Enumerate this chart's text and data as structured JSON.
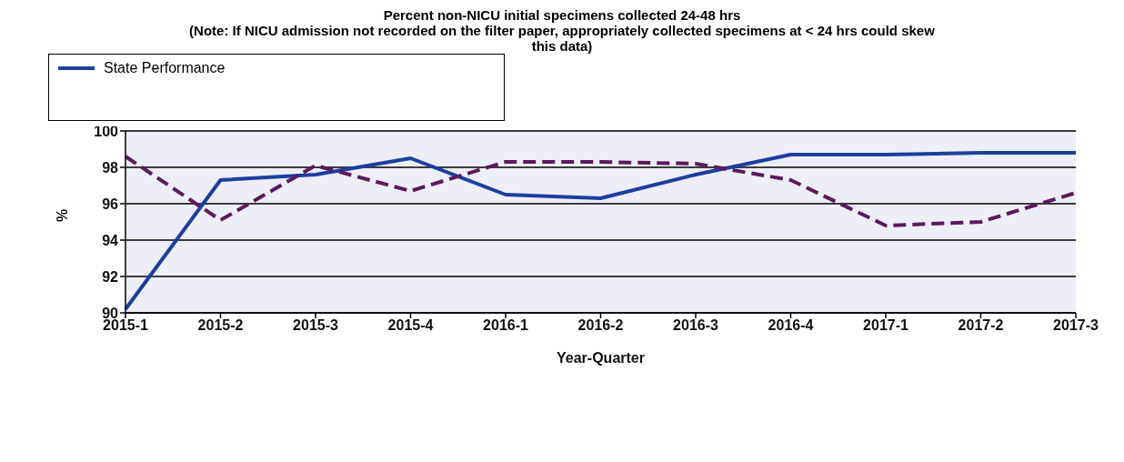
{
  "chart_data": {
    "type": "line",
    "title": "Percent non-NICU initial specimens collected 24-48 hrs",
    "subtitle": "(Note: If NICU admission not recorded on the filter paper, appropriately collected specimens at < 24 hrs could skew this data)",
    "xlabel": "Year-Quarter",
    "ylabel": "%",
    "categories": [
      "2015-1",
      "2015-2",
      "2015-3",
      "2015-4",
      "2016-1",
      "2016-2",
      "2016-3",
      "2016-4",
      "2017-1",
      "2017-2",
      "2017-3"
    ],
    "series": [
      {
        "name": "State Performance",
        "color": "#1c3f9e",
        "line_style": "solid",
        "values": [
          90.2,
          97.3,
          97.6,
          98.5,
          96.5,
          96.3,
          97.6,
          98.7,
          98.7,
          98.8,
          98.8
        ]
      },
      {
        "color": "#5a1a5e",
        "line_style": "dashed",
        "values": [
          98.6,
          95.1,
          98.1,
          96.7,
          98.3,
          98.3,
          98.2,
          97.3,
          94.8,
          95.0,
          96.6
        ]
      }
    ],
    "ylim": [
      90,
      100
    ],
    "yticks": [
      90,
      92,
      94,
      96,
      98,
      100
    ],
    "grid": "y",
    "legend": "top left",
    "marker": "none"
  }
}
